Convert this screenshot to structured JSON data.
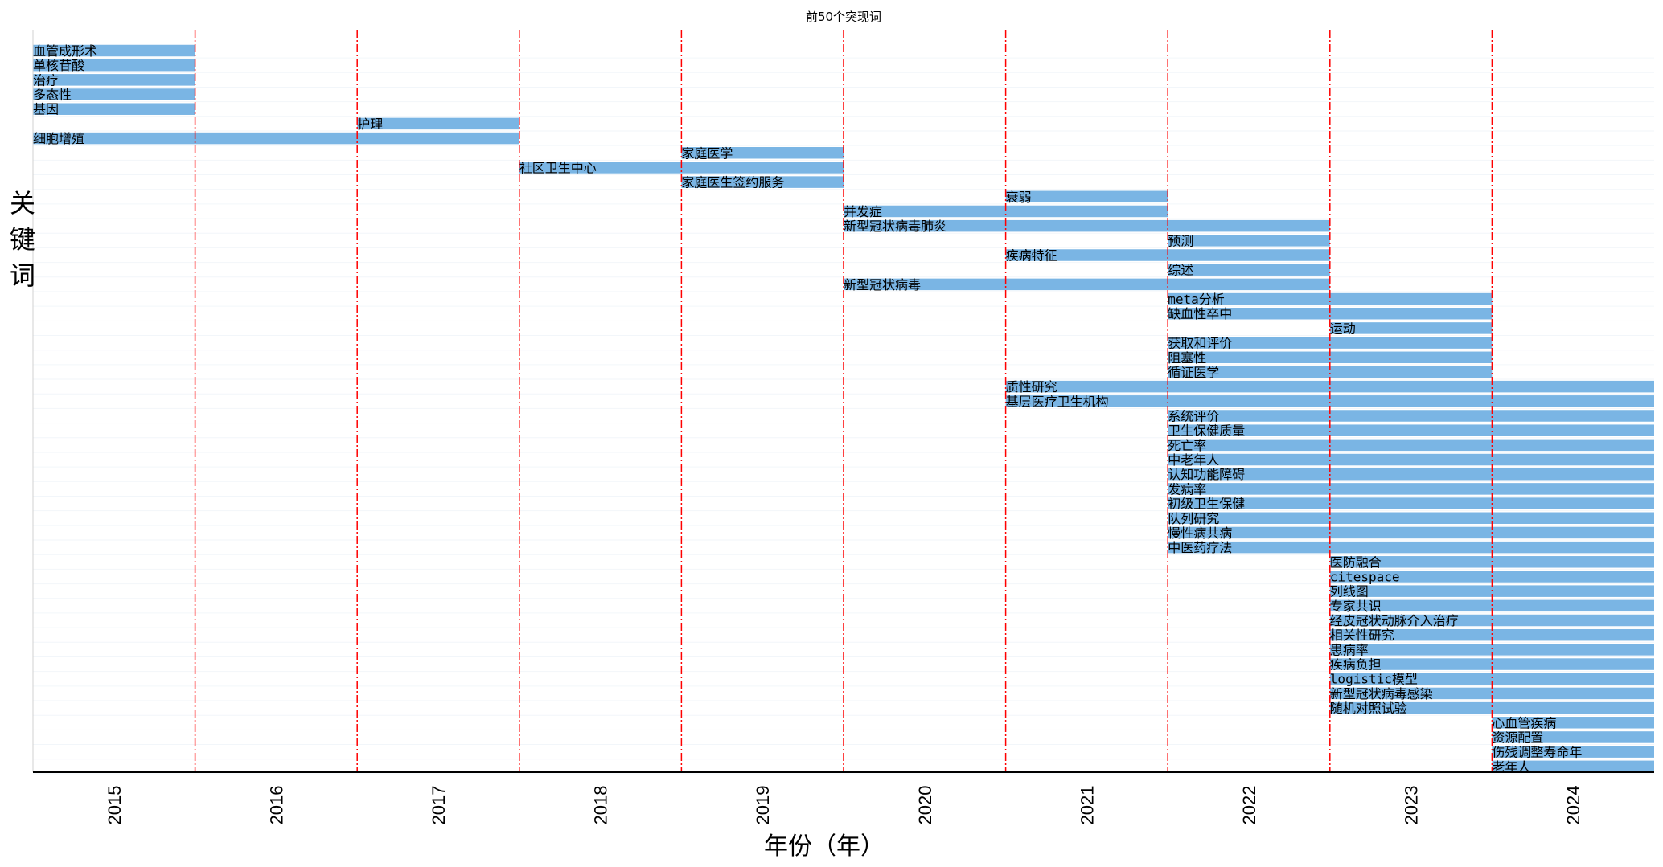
{
  "chart_data": {
    "type": "bar",
    "orientation": "horizontal-timeline",
    "title": "前50个突现词",
    "xlabel": "年份（年）",
    "ylabel": "关键词",
    "x_ticks": [
      "2015",
      "2016",
      "2017",
      "2018",
      "2019",
      "2020",
      "2021",
      "2022",
      "2023",
      "2024"
    ],
    "xlim": [
      2015,
      2024
    ],
    "grid": "horizontal faint",
    "bar_color": "#7ab5e4",
    "divider_color": "#ff0000",
    "series": [
      {
        "keyword": "血管成形术",
        "start": 2015,
        "end": 2015
      },
      {
        "keyword": "单核苷酸",
        "start": 2015,
        "end": 2015
      },
      {
        "keyword": "治疗",
        "start": 2015,
        "end": 2015
      },
      {
        "keyword": "多态性",
        "start": 2015,
        "end": 2015
      },
      {
        "keyword": "基因",
        "start": 2015,
        "end": 2015
      },
      {
        "keyword": "护理",
        "start": 2017,
        "end": 2017
      },
      {
        "keyword": "细胞增殖",
        "start": 2015,
        "end": 2017
      },
      {
        "keyword": "家庭医学",
        "start": 2019,
        "end": 2019
      },
      {
        "keyword": "社区卫生中心",
        "start": 2018,
        "end": 2019
      },
      {
        "keyword": "家庭医生签约服务",
        "start": 2019,
        "end": 2019
      },
      {
        "keyword": "衰弱",
        "start": 2021,
        "end": 2021
      },
      {
        "keyword": "并发症",
        "start": 2020,
        "end": 2021
      },
      {
        "keyword": "新型冠状病毒肺炎",
        "start": 2020,
        "end": 2022
      },
      {
        "keyword": "预测",
        "start": 2022,
        "end": 2022
      },
      {
        "keyword": "疾病特征",
        "start": 2021,
        "end": 2022
      },
      {
        "keyword": "综述",
        "start": 2022,
        "end": 2022
      },
      {
        "keyword": "新型冠状病毒",
        "start": 2020,
        "end": 2022
      },
      {
        "keyword": "meta分析",
        "start": 2022,
        "end": 2023
      },
      {
        "keyword": "缺血性卒中",
        "start": 2022,
        "end": 2023
      },
      {
        "keyword": "运动",
        "start": 2023,
        "end": 2023
      },
      {
        "keyword": "获取和评价",
        "start": 2022,
        "end": 2023
      },
      {
        "keyword": "阻塞性",
        "start": 2022,
        "end": 2023
      },
      {
        "keyword": "循证医学",
        "start": 2022,
        "end": 2023
      },
      {
        "keyword": "质性研究",
        "start": 2021,
        "end": 2024
      },
      {
        "keyword": "基层医疗卫生机构",
        "start": 2021,
        "end": 2024
      },
      {
        "keyword": "系统评价",
        "start": 2022,
        "end": 2024
      },
      {
        "keyword": "卫生保健质量",
        "start": 2022,
        "end": 2024
      },
      {
        "keyword": "死亡率",
        "start": 2022,
        "end": 2024
      },
      {
        "keyword": "中老年人",
        "start": 2022,
        "end": 2024
      },
      {
        "keyword": "认知功能障碍",
        "start": 2022,
        "end": 2024
      },
      {
        "keyword": "发病率",
        "start": 2022,
        "end": 2024
      },
      {
        "keyword": "初级卫生保健",
        "start": 2022,
        "end": 2024
      },
      {
        "keyword": "队列研究",
        "start": 2022,
        "end": 2024
      },
      {
        "keyword": "慢性病共病",
        "start": 2022,
        "end": 2024
      },
      {
        "keyword": "中医药疗法",
        "start": 2022,
        "end": 2024
      },
      {
        "keyword": "医防融合",
        "start": 2023,
        "end": 2024
      },
      {
        "keyword": "citespace",
        "start": 2023,
        "end": 2024
      },
      {
        "keyword": "列线图",
        "start": 2023,
        "end": 2024
      },
      {
        "keyword": "专家共识",
        "start": 2023,
        "end": 2024
      },
      {
        "keyword": "经皮冠状动脉介入治疗",
        "start": 2023,
        "end": 2024
      },
      {
        "keyword": "相关性研究",
        "start": 2023,
        "end": 2024
      },
      {
        "keyword": "患病率",
        "start": 2023,
        "end": 2024
      },
      {
        "keyword": "疾病负担",
        "start": 2023,
        "end": 2024
      },
      {
        "keyword": "logistic模型",
        "start": 2023,
        "end": 2024
      },
      {
        "keyword": "新型冠状病毒感染",
        "start": 2023,
        "end": 2024
      },
      {
        "keyword": "随机对照试验",
        "start": 2023,
        "end": 2024
      },
      {
        "keyword": "心血管疾病",
        "start": 2024,
        "end": 2024
      },
      {
        "keyword": "资源配置",
        "start": 2024,
        "end": 2024
      },
      {
        "keyword": "伤残调整寿命年",
        "start": 2024,
        "end": 2024
      },
      {
        "keyword": "老年人",
        "start": 2024,
        "end": 2024
      }
    ]
  }
}
